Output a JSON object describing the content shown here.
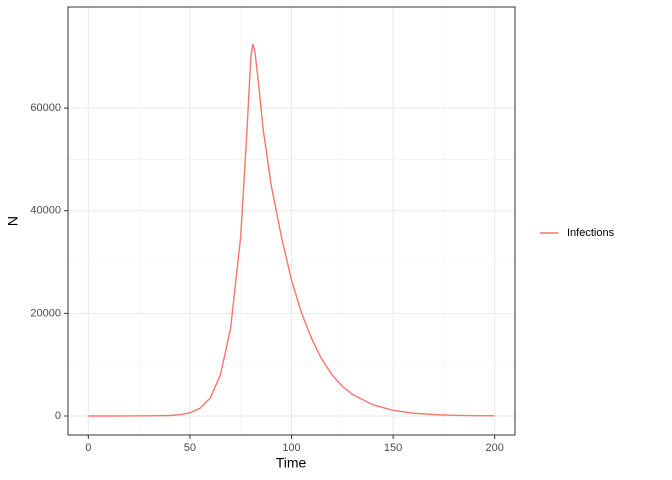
{
  "chart_data": {
    "type": "line",
    "xlabel": "Time",
    "ylabel": "N",
    "x": [
      0,
      10,
      20,
      30,
      40,
      45,
      50,
      55,
      60,
      65,
      70,
      75,
      78,
      80,
      81,
      82,
      84,
      86,
      90,
      95,
      100,
      105,
      110,
      115,
      120,
      125,
      130,
      140,
      150,
      160,
      170,
      180,
      190,
      200
    ],
    "series": [
      {
        "name": "Infections",
        "color": "#F8766D",
        "values": [
          0,
          0,
          10,
          30,
          100,
          250,
          600,
          1500,
          3500,
          8000,
          17000,
          35000,
          55000,
          70000,
          72500,
          71000,
          64000,
          56000,
          45000,
          35000,
          26500,
          20000,
          15000,
          11000,
          8000,
          5800,
          4200,
          2200,
          1100,
          550,
          280,
          140,
          70,
          35
        ]
      }
    ],
    "xlim": [
      -10,
      210
    ],
    "xticks": [
      0,
      50,
      100,
      150,
      200
    ],
    "ylim": [
      -3700,
      79700
    ],
    "yticks": [
      0,
      20000,
      40000,
      60000
    ],
    "grid": true,
    "legend": "right"
  }
}
